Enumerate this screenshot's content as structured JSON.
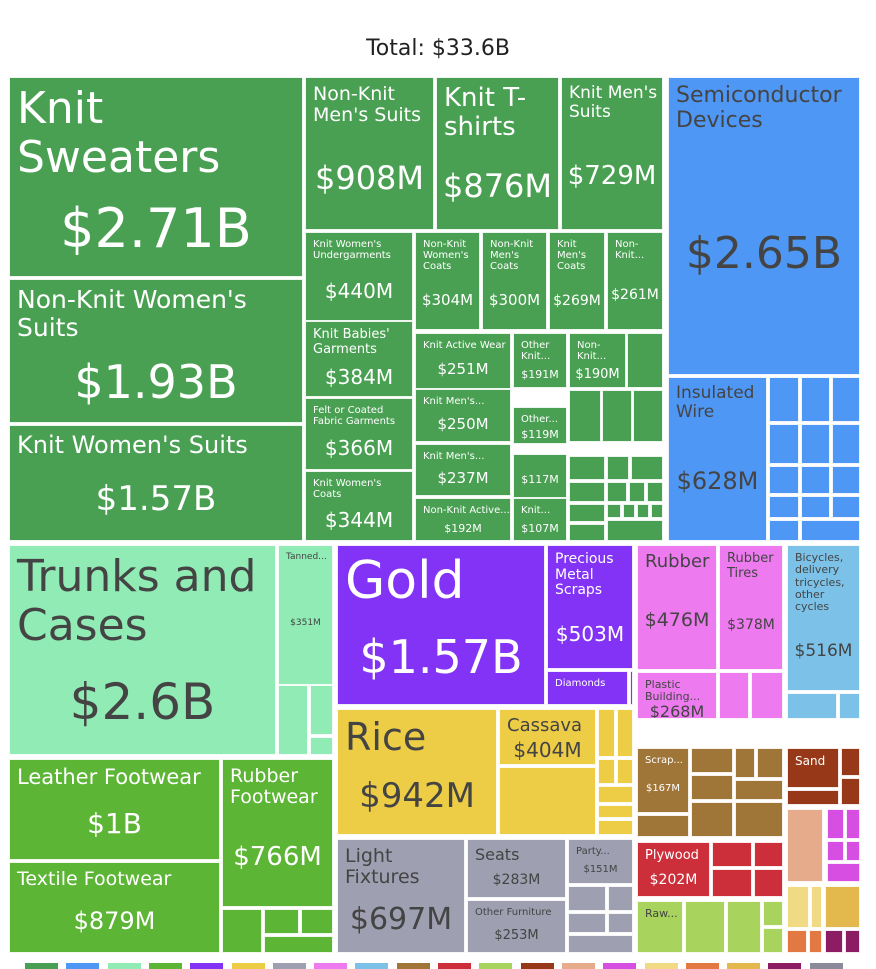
{
  "header": {
    "total_label": "Total: $33.6B"
  },
  "chart_data": {
    "type": "treemap",
    "total": "$33.6B",
    "groups": [
      {
        "key": "textiles",
        "color": "#4aa052"
      },
      {
        "key": "electronics",
        "color": "#4f97f5"
      },
      {
        "key": "trunks",
        "color": "#90ecb4"
      },
      {
        "key": "footwear",
        "color": "#5db536"
      },
      {
        "key": "precious",
        "color": "#8233f5"
      },
      {
        "key": "vegetables",
        "color": "#edcd45"
      },
      {
        "key": "furniture",
        "color": "#9e9fb0"
      },
      {
        "key": "plastics",
        "color": "#ee7af0"
      },
      {
        "key": "vehicles",
        "color": "#7cc2e8"
      },
      {
        "key": "wood",
        "color": "#a07638"
      },
      {
        "key": "red",
        "color": "#cc2e3a"
      },
      {
        "key": "lightgreen",
        "color": "#a8d35d"
      },
      {
        "key": "stone",
        "color": "#973818"
      },
      {
        "key": "salmon",
        "color": "#e5ab8b"
      },
      {
        "key": "magenta",
        "color": "#d64fe2"
      },
      {
        "key": "paleyellow",
        "color": "#f0da84"
      },
      {
        "key": "orange",
        "color": "#e27842"
      },
      {
        "key": "gold",
        "color": "#e3b84d"
      },
      {
        "key": "plum",
        "color": "#8c1d64"
      },
      {
        "key": "slate",
        "color": "#8a8a9a"
      }
    ],
    "items": [
      {
        "name": "Knit Sweaters",
        "value": "$2.71B",
        "group": "textiles"
      },
      {
        "name": "Non-Knit Women's Suits",
        "value": "$1.93B",
        "group": "textiles"
      },
      {
        "name": "Knit Women's Suits",
        "value": "$1.57B",
        "group": "textiles"
      },
      {
        "name": "Non-Knit Men's Suits",
        "value": "$908M",
        "group": "textiles"
      },
      {
        "name": "Knit T-shirts",
        "value": "$876M",
        "group": "textiles"
      },
      {
        "name": "Knit Men's Suits",
        "value": "$729M",
        "group": "textiles"
      },
      {
        "name": "Knit Women's Undergarments",
        "value": "$440M",
        "group": "textiles"
      },
      {
        "name": "Knit Babies' Garments",
        "value": "$384M",
        "group": "textiles"
      },
      {
        "name": "Felt or Coated Fabric Garments",
        "value": "$366M",
        "group": "textiles"
      },
      {
        "name": "Knit Women's Coats",
        "value": "$344M",
        "group": "textiles"
      },
      {
        "name": "Non-Knit Women's Coats",
        "value": "$304M",
        "group": "textiles"
      },
      {
        "name": "Non-Knit Men's Coats",
        "value": "$300M",
        "group": "textiles"
      },
      {
        "name": "Knit Men's Coats",
        "value": "$269M",
        "group": "textiles"
      },
      {
        "name": "Non-Knit...",
        "value": "$261M",
        "group": "textiles"
      },
      {
        "name": "Knit Active Wear",
        "value": "$251M",
        "group": "textiles"
      },
      {
        "name": "Knit Men's...",
        "value": "$250M",
        "group": "textiles"
      },
      {
        "name": "Knit Men's...",
        "value": "$237M",
        "group": "textiles"
      },
      {
        "name": "Non-Knit Active...",
        "value": "$192M",
        "group": "textiles"
      },
      {
        "name": "Other Knit...",
        "value": "$191M",
        "group": "textiles"
      },
      {
        "name": "Non-Knit...",
        "value": "$190M",
        "group": "textiles"
      },
      {
        "name": "Other...",
        "value": "$119M",
        "group": "textiles"
      },
      {
        "name": "",
        "value": "$117M",
        "group": "textiles"
      },
      {
        "name": "Knit...",
        "value": "$107M",
        "group": "textiles"
      },
      {
        "name": "Semiconductor Devices",
        "value": "$2.65B",
        "group": "electronics"
      },
      {
        "name": "Insulated Wire",
        "value": "$628M",
        "group": "electronics"
      },
      {
        "name": "Trunks and Cases",
        "value": "$2.6B",
        "group": "trunks"
      },
      {
        "name": "Tanned...",
        "value": "$351M",
        "group": "trunks"
      },
      {
        "name": "Leather Footwear",
        "value": "$1B",
        "group": "footwear"
      },
      {
        "name": "Textile Footwear",
        "value": "$879M",
        "group": "footwear"
      },
      {
        "name": "Rubber Footwear",
        "value": "$766M",
        "group": "footwear"
      },
      {
        "name": "Gold",
        "value": "$1.57B",
        "group": "precious"
      },
      {
        "name": "Precious Metal Scraps",
        "value": "$503M",
        "group": "precious"
      },
      {
        "name": "Diamonds",
        "value": "",
        "group": "precious"
      },
      {
        "name": "Rice",
        "value": "$942M",
        "group": "vegetables"
      },
      {
        "name": "Cassava",
        "value": "$404M",
        "group": "vegetables"
      },
      {
        "name": "Light Fixtures",
        "value": "$697M",
        "group": "furniture"
      },
      {
        "name": "Seats",
        "value": "$283M",
        "group": "furniture"
      },
      {
        "name": "Other Furniture",
        "value": "$253M",
        "group": "furniture"
      },
      {
        "name": "Party...",
        "value": "$151M",
        "group": "furniture"
      },
      {
        "name": "Rubber",
        "value": "$476M",
        "group": "plastics"
      },
      {
        "name": "Rubber Tires",
        "value": "$378M",
        "group": "plastics"
      },
      {
        "name": "Plastic Building...",
        "value": "$268M",
        "group": "plastics"
      },
      {
        "name": "Bicycles, delivery tricycles, other cycles",
        "value": "$516M",
        "group": "vehicles"
      },
      {
        "name": "Scrap...",
        "value": "$167M",
        "group": "wood"
      },
      {
        "name": "Plywood",
        "value": "$202M",
        "group": "red"
      },
      {
        "name": "Raw...",
        "value": "",
        "group": "lightgreen"
      },
      {
        "name": "Sand",
        "value": "",
        "group": "stone"
      }
    ]
  }
}
